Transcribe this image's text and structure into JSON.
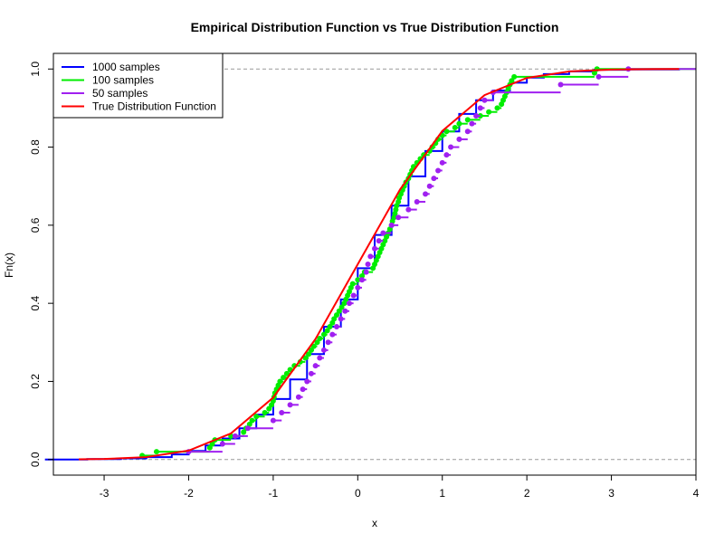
{
  "chart_data": {
    "type": "line",
    "title": "Empirical Distribution Function vs True Distribution Function",
    "xlabel": "x",
    "ylabel": "Fn(x)",
    "xlim": [
      -3.6,
      4.0
    ],
    "ylim": [
      -0.04,
      1.04
    ],
    "xticks": [
      -3,
      -2,
      -1,
      0,
      1,
      2,
      3,
      4
    ],
    "yticks": [
      0.0,
      0.2,
      0.4,
      0.6,
      0.8,
      1.0
    ],
    "xtick_labels": [
      "-3",
      "-2",
      "-1",
      "0",
      "1",
      "2",
      "3",
      "4"
    ],
    "ytick_labels": [
      "0.0",
      "0.2",
      "0.4",
      "0.6",
      "0.8",
      "1.0"
    ],
    "reference_lines_y": [
      0,
      1
    ],
    "legend": {
      "position": "top-left",
      "entries": [
        {
          "label": "1000 samples",
          "color": "#0000ff"
        },
        {
          "label": "100 samples",
          "color": "#00ee00"
        },
        {
          "label": "50 samples",
          "color": "#a020f0"
        },
        {
          "label": "True Distribution Function",
          "color": "#ff0000"
        }
      ]
    },
    "series": [
      {
        "name": "1000 samples",
        "color": "#0000ff",
        "kind": "step",
        "x": [
          -3.7,
          -3.2,
          -2.8,
          -2.5,
          -2.2,
          -2.0,
          -1.8,
          -1.6,
          -1.4,
          -1.2,
          -1.0,
          -0.8,
          -0.6,
          -0.4,
          -0.2,
          0.0,
          0.2,
          0.4,
          0.6,
          0.8,
          1.0,
          1.2,
          1.4,
          1.6,
          1.8,
          2.0,
          2.2,
          2.5,
          2.8,
          3.2,
          3.8
        ],
        "y": [
          0.0,
          0.001,
          0.003,
          0.006,
          0.013,
          0.022,
          0.036,
          0.054,
          0.08,
          0.115,
          0.155,
          0.205,
          0.27,
          0.34,
          0.41,
          0.49,
          0.575,
          0.65,
          0.725,
          0.79,
          0.84,
          0.885,
          0.92,
          0.945,
          0.965,
          0.978,
          0.987,
          0.994,
          0.998,
          0.999,
          1.0
        ]
      },
      {
        "name": "100 samples",
        "color": "#00ee00",
        "kind": "ecdf",
        "x": [
          -2.55,
          -2.38,
          -1.75,
          -1.72,
          -1.69,
          -1.5,
          -1.35,
          -1.32,
          -1.28,
          -1.25,
          -1.2,
          -1.1,
          -1.05,
          -1.02,
          -1.0,
          -0.99,
          -0.98,
          -0.96,
          -0.94,
          -0.92,
          -0.88,
          -0.84,
          -0.8,
          -0.75,
          -0.68,
          -0.62,
          -0.58,
          -0.55,
          -0.52,
          -0.48,
          -0.45,
          -0.4,
          -0.36,
          -0.33,
          -0.3,
          -0.28,
          -0.25,
          -0.22,
          -0.19,
          -0.16,
          -0.14,
          -0.12,
          -0.1,
          -0.08,
          -0.06,
          0.0,
          0.05,
          0.08,
          0.18,
          0.2,
          0.22,
          0.24,
          0.26,
          0.28,
          0.3,
          0.32,
          0.34,
          0.36,
          0.38,
          0.4,
          0.41,
          0.43,
          0.44,
          0.45,
          0.46,
          0.48,
          0.49,
          0.51,
          0.53,
          0.55,
          0.57,
          0.6,
          0.62,
          0.64,
          0.66,
          0.7,
          0.74,
          0.78,
          0.85,
          0.88,
          0.92,
          0.95,
          1.0,
          1.05,
          1.15,
          1.2,
          1.3,
          1.45,
          1.55,
          1.65,
          1.7,
          1.72,
          1.74,
          1.76,
          1.78,
          1.8,
          1.82,
          1.85,
          2.8,
          2.83
        ],
        "y": [
          0.01,
          0.02,
          0.03,
          0.04,
          0.05,
          0.06,
          0.07,
          0.08,
          0.09,
          0.1,
          0.11,
          0.12,
          0.13,
          0.14,
          0.15,
          0.16,
          0.17,
          0.18,
          0.19,
          0.2,
          0.21,
          0.22,
          0.23,
          0.24,
          0.25,
          0.26,
          0.27,
          0.28,
          0.29,
          0.3,
          0.31,
          0.32,
          0.33,
          0.34,
          0.35,
          0.36,
          0.37,
          0.38,
          0.39,
          0.4,
          0.41,
          0.42,
          0.43,
          0.44,
          0.45,
          0.46,
          0.47,
          0.48,
          0.49,
          0.5,
          0.51,
          0.52,
          0.53,
          0.54,
          0.55,
          0.56,
          0.57,
          0.58,
          0.59,
          0.6,
          0.61,
          0.62,
          0.63,
          0.64,
          0.65,
          0.66,
          0.67,
          0.68,
          0.69,
          0.7,
          0.71,
          0.72,
          0.73,
          0.74,
          0.75,
          0.76,
          0.77,
          0.78,
          0.79,
          0.8,
          0.81,
          0.82,
          0.83,
          0.84,
          0.85,
          0.86,
          0.87,
          0.88,
          0.89,
          0.9,
          0.91,
          0.92,
          0.93,
          0.94,
          0.95,
          0.96,
          0.97,
          0.98,
          0.99,
          1.0
        ]
      },
      {
        "name": "50 samples",
        "color": "#a020f0",
        "kind": "ecdf",
        "x": [
          -2.0,
          -1.6,
          -1.45,
          -1.3,
          -1.0,
          -0.9,
          -0.8,
          -0.7,
          -0.65,
          -0.6,
          -0.55,
          -0.5,
          -0.45,
          -0.4,
          -0.35,
          -0.3,
          -0.25,
          -0.2,
          -0.15,
          -0.1,
          -0.05,
          0.0,
          0.05,
          0.1,
          0.12,
          0.15,
          0.2,
          0.25,
          0.3,
          0.4,
          0.48,
          0.6,
          0.7,
          0.8,
          0.85,
          0.9,
          0.95,
          1.0,
          1.05,
          1.1,
          1.2,
          1.3,
          1.35,
          1.4,
          1.45,
          1.5,
          1.6,
          2.4,
          2.85,
          3.2
        ],
        "y": [
          0.02,
          0.04,
          0.06,
          0.08,
          0.1,
          0.12,
          0.14,
          0.16,
          0.18,
          0.2,
          0.22,
          0.24,
          0.26,
          0.28,
          0.3,
          0.32,
          0.34,
          0.36,
          0.38,
          0.4,
          0.42,
          0.44,
          0.46,
          0.48,
          0.5,
          0.52,
          0.54,
          0.56,
          0.58,
          0.6,
          0.62,
          0.64,
          0.66,
          0.68,
          0.7,
          0.72,
          0.74,
          0.76,
          0.78,
          0.8,
          0.82,
          0.84,
          0.86,
          0.88,
          0.9,
          0.92,
          0.94,
          0.96,
          0.98,
          1.0
        ]
      },
      {
        "name": "True Distribution Function",
        "color": "#ff0000",
        "kind": "line",
        "x": [
          -3.3,
          -3.0,
          -2.5,
          -2.0,
          -1.5,
          -1.0,
          -0.5,
          0.0,
          0.5,
          1.0,
          1.5,
          2.0,
          2.5,
          3.0,
          3.5,
          3.8
        ],
        "y": [
          0.0005,
          0.0013,
          0.0062,
          0.0228,
          0.0668,
          0.1587,
          0.3085,
          0.5,
          0.6915,
          0.8413,
          0.9332,
          0.9772,
          0.9938,
          0.9987,
          0.9998,
          0.9999
        ]
      }
    ]
  }
}
